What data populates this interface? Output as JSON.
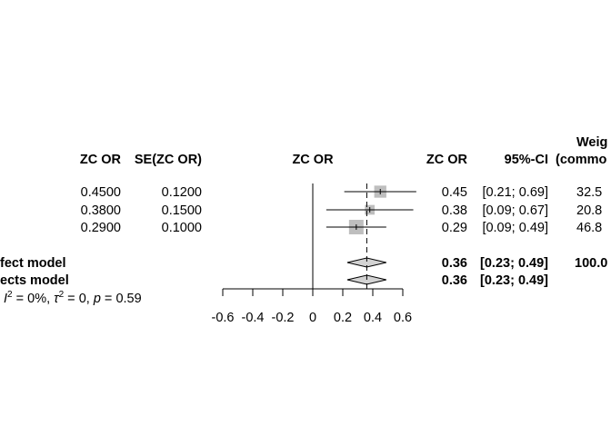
{
  "chart_data": {
    "type": "forest",
    "headers": {
      "est": "ZC OR",
      "se": "SE(ZC OR)",
      "plot": "ZC OR",
      "effect": "ZC OR",
      "ci": "95%-CI",
      "weight_line1": "Weig",
      "weight_line2": "(commo"
    },
    "studies": [
      {
        "est": "0.4500",
        "se": "0.1200",
        "effect": "0.45",
        "ci": "[0.21; 0.69]",
        "weight": "32.5",
        "value": 0.45,
        "lower": 0.21,
        "upper": 0.69,
        "w": 32.5
      },
      {
        "est": "0.3800",
        "se": "0.1500",
        "effect": "0.38",
        "ci": "[0.09; 0.67]",
        "weight": "20.8",
        "value": 0.38,
        "lower": 0.09,
        "upper": 0.67,
        "w": 20.8
      },
      {
        "est": "0.2900",
        "se": "0.1000",
        "effect": "0.29",
        "ci": "[0.09; 0.49]",
        "weight": "46.8",
        "value": 0.29,
        "lower": 0.09,
        "upper": 0.49,
        "w": 46.8
      }
    ],
    "pooled": [
      {
        "label": "fect model",
        "effect": "0.36",
        "ci": "[0.23; 0.49]",
        "weight": "100.0",
        "value": 0.36,
        "lower": 0.23,
        "upper": 0.49
      },
      {
        "label": "ects model",
        "effect": "0.36",
        "ci": "[0.23; 0.49]",
        "weight": "",
        "value": 0.36,
        "lower": 0.23,
        "upper": 0.49
      }
    ],
    "heterogeneity": {
      "i2": "0%",
      "tau2": "0",
      "p": "0.59"
    },
    "x_ticks": [
      -0.6,
      -0.4,
      -0.2,
      0,
      0.2,
      0.4,
      0.6
    ],
    "x_tick_labels": [
      "-0.6",
      "-0.4",
      "-0.2",
      "0",
      "0.2",
      "0.4",
      "0.6"
    ],
    "xlim": [
      -0.6,
      0.6
    ],
    "reference_line": 0,
    "pooled_line": 0.36,
    "colors": {
      "square": "#bebebe",
      "diamond": "#d3d3d3",
      "line": "#000000"
    }
  }
}
